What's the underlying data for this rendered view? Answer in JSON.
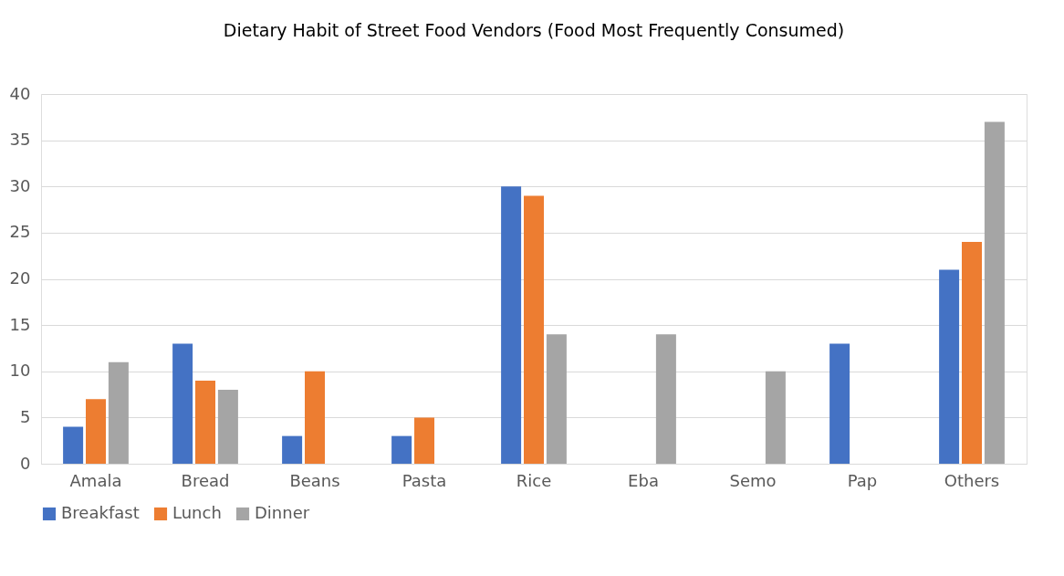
{
  "chart_data": {
    "type": "bar",
    "title": "Dietary Habit of Street Food Vendors (Food Most Frequently Consumed)",
    "categories": [
      "Amala",
      "Bread",
      "Beans",
      "Pasta",
      "Rice",
      "Eba",
      "Semo",
      "Pap",
      "Others"
    ],
    "series": [
      {
        "name": "Breakfast",
        "color": "#4472c4",
        "values": [
          4,
          13,
          3,
          3,
          30,
          null,
          null,
          13,
          21
        ]
      },
      {
        "name": "Lunch",
        "color": "#ed7d31",
        "values": [
          7,
          9,
          10,
          5,
          29,
          null,
          null,
          null,
          24
        ]
      },
      {
        "name": "Dinner",
        "color": "#a5a5a5",
        "values": [
          11,
          8,
          null,
          null,
          14,
          14,
          10,
          null,
          37
        ]
      }
    ],
    "ylim": [
      0,
      40
    ],
    "yticks": [
      0,
      5,
      10,
      15,
      20,
      25,
      30,
      35,
      40
    ],
    "grid": "y",
    "legend": "bottom"
  }
}
